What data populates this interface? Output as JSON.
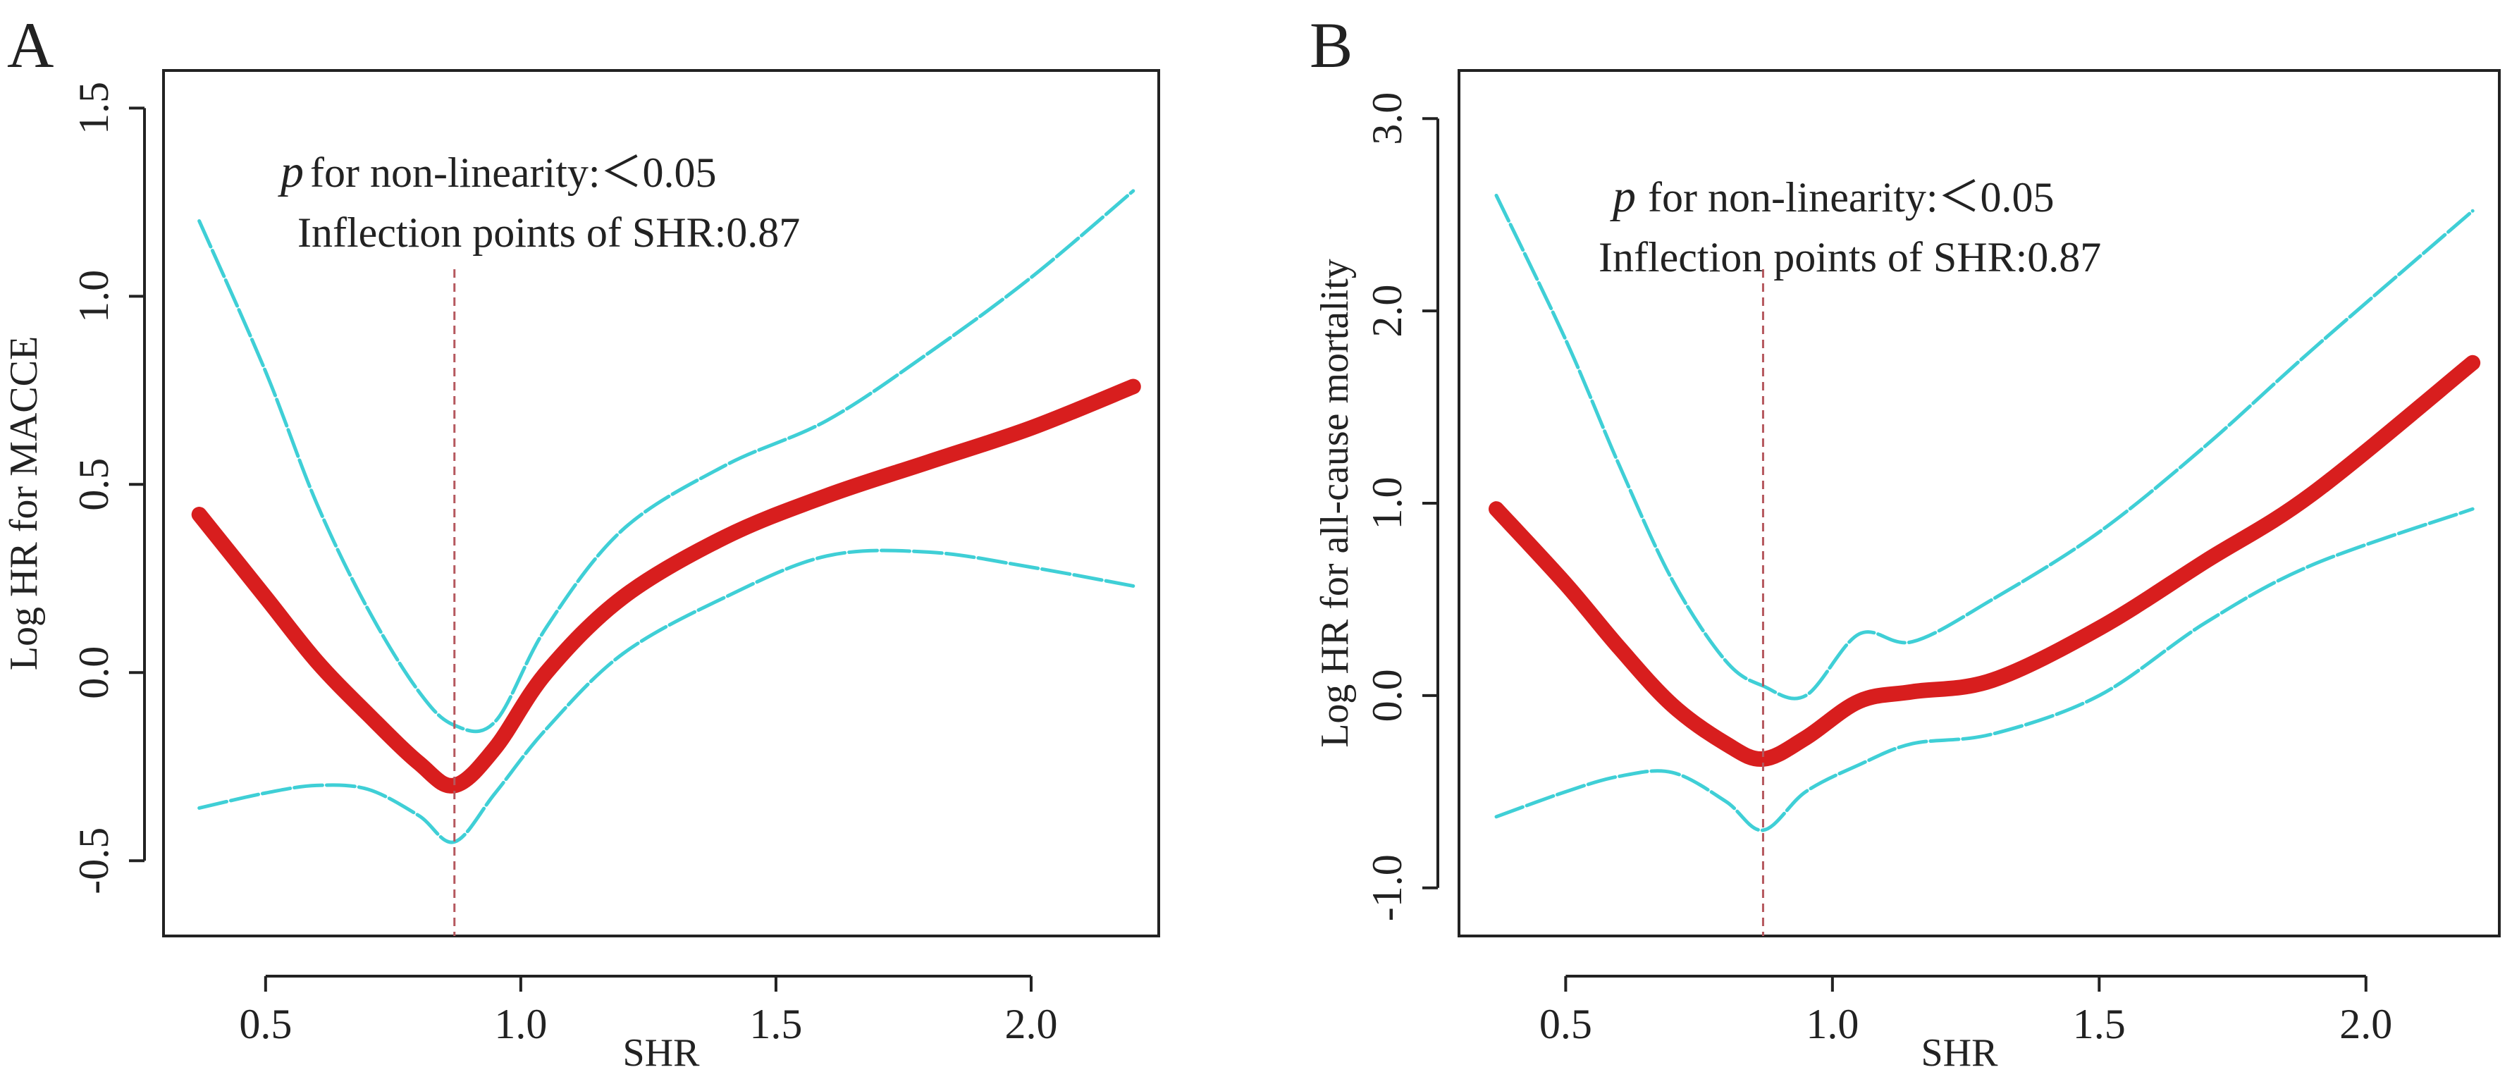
{
  "chart_data": [
    {
      "panel": "A",
      "type": "line",
      "xlabel": "SHR",
      "ylabel": "Log HR for MACCE",
      "xlim": [
        0.3,
        2.25
      ],
      "ylim": [
        -0.7,
        1.6
      ],
      "xticks": [
        0.5,
        1.0,
        1.5,
        2.0
      ],
      "xtick_labels": [
        "0.5",
        "1.0",
        "1.5",
        "2.0"
      ],
      "yticks": [
        -0.5,
        0.0,
        0.5,
        1.0,
        1.5
      ],
      "ytick_labels": [
        "-0.5",
        "0.0",
        "0.5",
        "1.0",
        "1.5"
      ],
      "annotation_p": "p",
      "annotation_line1": "for non-linearity:＜0.05",
      "annotation_line2": "Inflection points of SHR:0.87",
      "inflection_x": 0.87,
      "x": [
        0.37,
        0.5,
        0.6,
        0.7,
        0.8,
        0.87,
        0.95,
        1.05,
        1.2,
        1.4,
        1.6,
        1.8,
        2.0,
        2.2
      ],
      "series": [
        {
          "name": "Log HR",
          "color": "#d81e1e",
          "values": [
            0.42,
            0.2,
            0.03,
            -0.11,
            -0.24,
            -0.3,
            -0.2,
            0.0,
            0.2,
            0.36,
            0.47,
            0.56,
            0.65,
            0.76
          ]
        },
        {
          "name": "Upper 95% CI",
          "color": "#3fcfd6",
          "values": [
            1.2,
            0.8,
            0.45,
            0.17,
            -0.05,
            -0.14,
            -0.13,
            0.12,
            0.38,
            0.55,
            0.67,
            0.85,
            1.05,
            1.28
          ]
        },
        {
          "name": "Lower 95% CI",
          "color": "#3fcfd6",
          "values": [
            -0.36,
            -0.32,
            -0.3,
            -0.31,
            -0.38,
            -0.45,
            -0.32,
            -0.15,
            0.05,
            0.2,
            0.31,
            0.32,
            0.28,
            0.23
          ]
        }
      ]
    },
    {
      "panel": "B",
      "type": "line",
      "xlabel": "SHR",
      "ylabel": "Log HR for all-cause mortality",
      "xlim": [
        0.3,
        2.25
      ],
      "ylim": [
        -1.25,
        3.25
      ],
      "xticks": [
        0.5,
        1.0,
        1.5,
        2.0
      ],
      "xtick_labels": [
        "0.5",
        "1.0",
        "1.5",
        "2.0"
      ],
      "yticks": [
        -1.0,
        0.0,
        1.0,
        2.0,
        3.0
      ],
      "ytick_labels": [
        "-1.0",
        "0.0",
        "1.0",
        "2.0",
        "3.0"
      ],
      "annotation_p": "p",
      "annotation_line1": "for non-linearity:＜0.05",
      "annotation_line2": "Inflection points of SHR:0.87",
      "inflection_x": 0.87,
      "x": [
        0.37,
        0.5,
        0.6,
        0.7,
        0.8,
        0.87,
        0.95,
        1.05,
        1.15,
        1.3,
        1.5,
        1.7,
        1.9,
        2.2
      ],
      "series": [
        {
          "name": "Log HR",
          "color": "#d81e1e",
          "values": [
            0.97,
            0.58,
            0.25,
            -0.05,
            -0.25,
            -0.33,
            -0.22,
            -0.03,
            0.02,
            0.08,
            0.35,
            0.7,
            1.05,
            1.73
          ]
        },
        {
          "name": "Upper 95% CI",
          "color": "#3fcfd6",
          "values": [
            2.6,
            1.85,
            1.2,
            0.6,
            0.18,
            0.05,
            0.0,
            0.32,
            0.28,
            0.5,
            0.85,
            1.3,
            1.8,
            2.52
          ]
        },
        {
          "name": "Lower 95% CI",
          "color": "#3fcfd6",
          "values": [
            -0.63,
            -0.5,
            -0.42,
            -0.4,
            -0.55,
            -0.7,
            -0.5,
            -0.36,
            -0.25,
            -0.2,
            0.0,
            0.38,
            0.68,
            0.97
          ]
        }
      ]
    }
  ]
}
